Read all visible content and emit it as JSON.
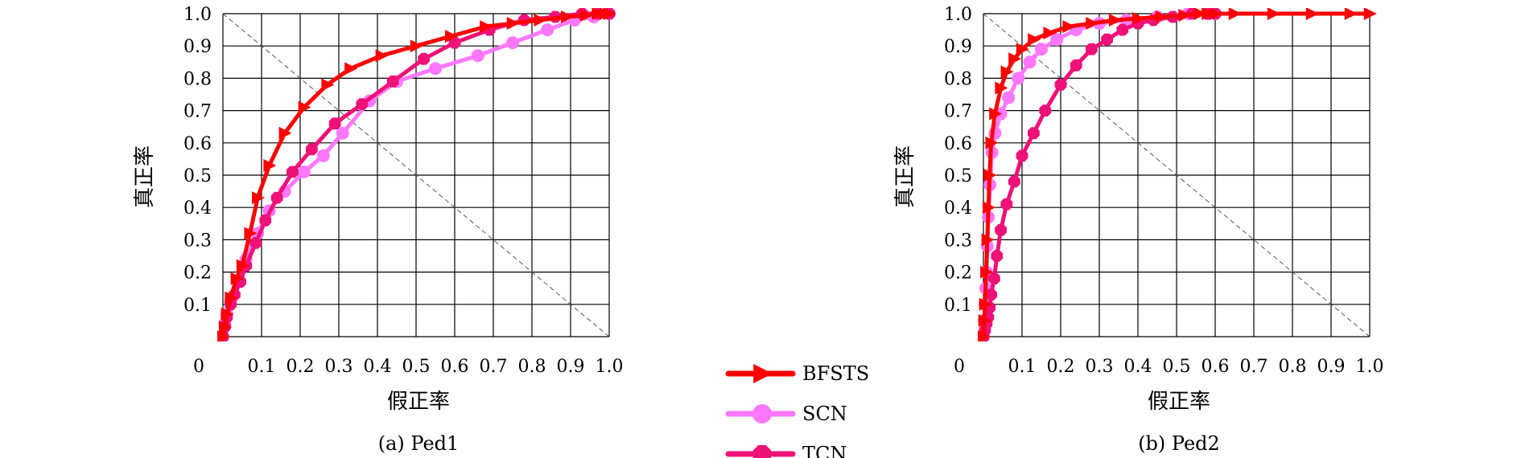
{
  "chart_data": [
    {
      "type": "line",
      "caption": "(a) Ped1",
      "xlabel": "假正率",
      "ylabel": "真正率",
      "xlim": [
        0,
        1.0
      ],
      "ylim": [
        0,
        1.0
      ],
      "grid": true,
      "diagonal": "dashed, from (0,1) to (1,0)",
      "x_ticks": [
        "0",
        "0.1",
        "0.2",
        "0.3",
        "0.4",
        "0.5",
        "0.6",
        "0.7",
        "0.8",
        "0.9",
        "1.0"
      ],
      "y_ticks": [
        "0.1",
        "0.2",
        "0.3",
        "0.4",
        "0.5",
        "0.6",
        "0.7",
        "0.8",
        "0.9",
        "1.0"
      ],
      "series": [
        {
          "name": "BFSTS",
          "x": [
            0,
            0.005,
            0.01,
            0.02,
            0.035,
            0.05,
            0.07,
            0.09,
            0.12,
            0.16,
            0.21,
            0.27,
            0.33,
            0.41,
            0.5,
            0.59,
            0.68,
            0.75,
            0.82,
            0.89,
            0.94,
            0.97,
            0.99,
            1.0
          ],
          "y": [
            0,
            0.03,
            0.07,
            0.12,
            0.18,
            0.22,
            0.32,
            0.43,
            0.53,
            0.63,
            0.71,
            0.78,
            0.83,
            0.87,
            0.9,
            0.93,
            0.96,
            0.97,
            0.98,
            0.99,
            0.995,
            1.0,
            1.0,
            1.0
          ]
        },
        {
          "name": "SCN",
          "x": [
            0,
            0.005,
            0.01,
            0.02,
            0.04,
            0.06,
            0.09,
            0.12,
            0.16,
            0.21,
            0.26,
            0.31,
            0.38,
            0.45,
            0.55,
            0.66,
            0.75,
            0.84,
            0.91,
            0.96,
            1.0
          ],
          "y": [
            0,
            0.04,
            0.07,
            0.11,
            0.17,
            0.24,
            0.32,
            0.39,
            0.45,
            0.51,
            0.56,
            0.63,
            0.73,
            0.79,
            0.83,
            0.87,
            0.91,
            0.95,
            0.98,
            0.99,
            1.0
          ]
        },
        {
          "name": "TCN",
          "x": [
            0,
            0.005,
            0.01,
            0.02,
            0.03,
            0.045,
            0.06,
            0.085,
            0.11,
            0.14,
            0.18,
            0.23,
            0.29,
            0.36,
            0.44,
            0.52,
            0.6,
            0.69,
            0.78,
            0.86,
            0.93,
            0.97,
            1.0
          ],
          "y": [
            0,
            0.03,
            0.06,
            0.1,
            0.13,
            0.17,
            0.22,
            0.29,
            0.36,
            0.43,
            0.51,
            0.58,
            0.66,
            0.72,
            0.79,
            0.86,
            0.91,
            0.95,
            0.98,
            0.99,
            1.0,
            1.0,
            1.0
          ]
        }
      ]
    },
    {
      "type": "line",
      "caption": "(b) Ped2",
      "xlabel": "假正率",
      "ylabel": "真正率",
      "xlim": [
        0,
        1.0
      ],
      "ylim": [
        0,
        1.0
      ],
      "grid": true,
      "diagonal": "dashed, from (0,1) to (1,0)",
      "x_ticks": [
        "0",
        "0.1",
        "0.2",
        "0.3",
        "0.4",
        "0.5",
        "0.6",
        "0.7",
        "0.8",
        "0.9",
        "1.0"
      ],
      "y_ticks": [
        "0.1",
        "0.2",
        "0.3",
        "0.4",
        "0.5",
        "0.6",
        "0.7",
        "0.8",
        "0.9",
        "1.0"
      ],
      "series": [
        {
          "name": "BFSTS",
          "x": [
            0,
            0.002,
            0.004,
            0.007,
            0.01,
            0.013,
            0.016,
            0.02,
            0.03,
            0.045,
            0.06,
            0.08,
            0.1,
            0.13,
            0.17,
            0.22,
            0.28,
            0.34,
            0.4,
            0.46,
            0.52,
            0.56,
            0.58,
            0.6,
            0.65,
            0.75,
            0.85,
            0.95,
            1.0
          ],
          "y": [
            0,
            0.05,
            0.1,
            0.2,
            0.3,
            0.4,
            0.5,
            0.6,
            0.69,
            0.77,
            0.82,
            0.86,
            0.89,
            0.92,
            0.94,
            0.96,
            0.97,
            0.98,
            0.985,
            0.99,
            0.995,
            1.0,
            1.0,
            1.0,
            1.0,
            1.0,
            1.0,
            1.0,
            1.0
          ]
        },
        {
          "name": "SCN",
          "x": [
            0,
            0.002,
            0.004,
            0.006,
            0.008,
            0.01,
            0.013,
            0.017,
            0.022,
            0.03,
            0.045,
            0.065,
            0.09,
            0.12,
            0.15,
            0.19,
            0.24,
            0.3,
            0.37,
            0.45,
            0.53,
            0.58,
            0.6
          ],
          "y": [
            0,
            0.05,
            0.1,
            0.15,
            0.2,
            0.28,
            0.37,
            0.47,
            0.57,
            0.63,
            0.69,
            0.74,
            0.8,
            0.85,
            0.89,
            0.92,
            0.95,
            0.97,
            0.98,
            0.99,
            1.0,
            1.0,
            1.0
          ]
        },
        {
          "name": "TCN",
          "x": [
            0,
            0.004,
            0.008,
            0.012,
            0.016,
            0.02,
            0.028,
            0.035,
            0.045,
            0.06,
            0.08,
            0.1,
            0.13,
            0.16,
            0.2,
            0.24,
            0.28,
            0.32,
            0.36,
            0.4,
            0.44,
            0.49,
            0.54,
            0.58,
            0.6
          ],
          "y": [
            0,
            0.02,
            0.04,
            0.06,
            0.09,
            0.13,
            0.18,
            0.25,
            0.33,
            0.41,
            0.48,
            0.56,
            0.63,
            0.7,
            0.78,
            0.84,
            0.89,
            0.92,
            0.95,
            0.97,
            0.98,
            0.99,
            1.0,
            1.0,
            1.0
          ]
        }
      ]
    }
  ],
  "legend": [
    {
      "label": "BFSTS",
      "color": "#ff0000",
      "marker": "triangle-right"
    },
    {
      "label": "SCN",
      "color": "#ff77ff",
      "marker": "circle"
    },
    {
      "label": "TCN",
      "color": "#ee1177",
      "marker": "octagon"
    }
  ]
}
